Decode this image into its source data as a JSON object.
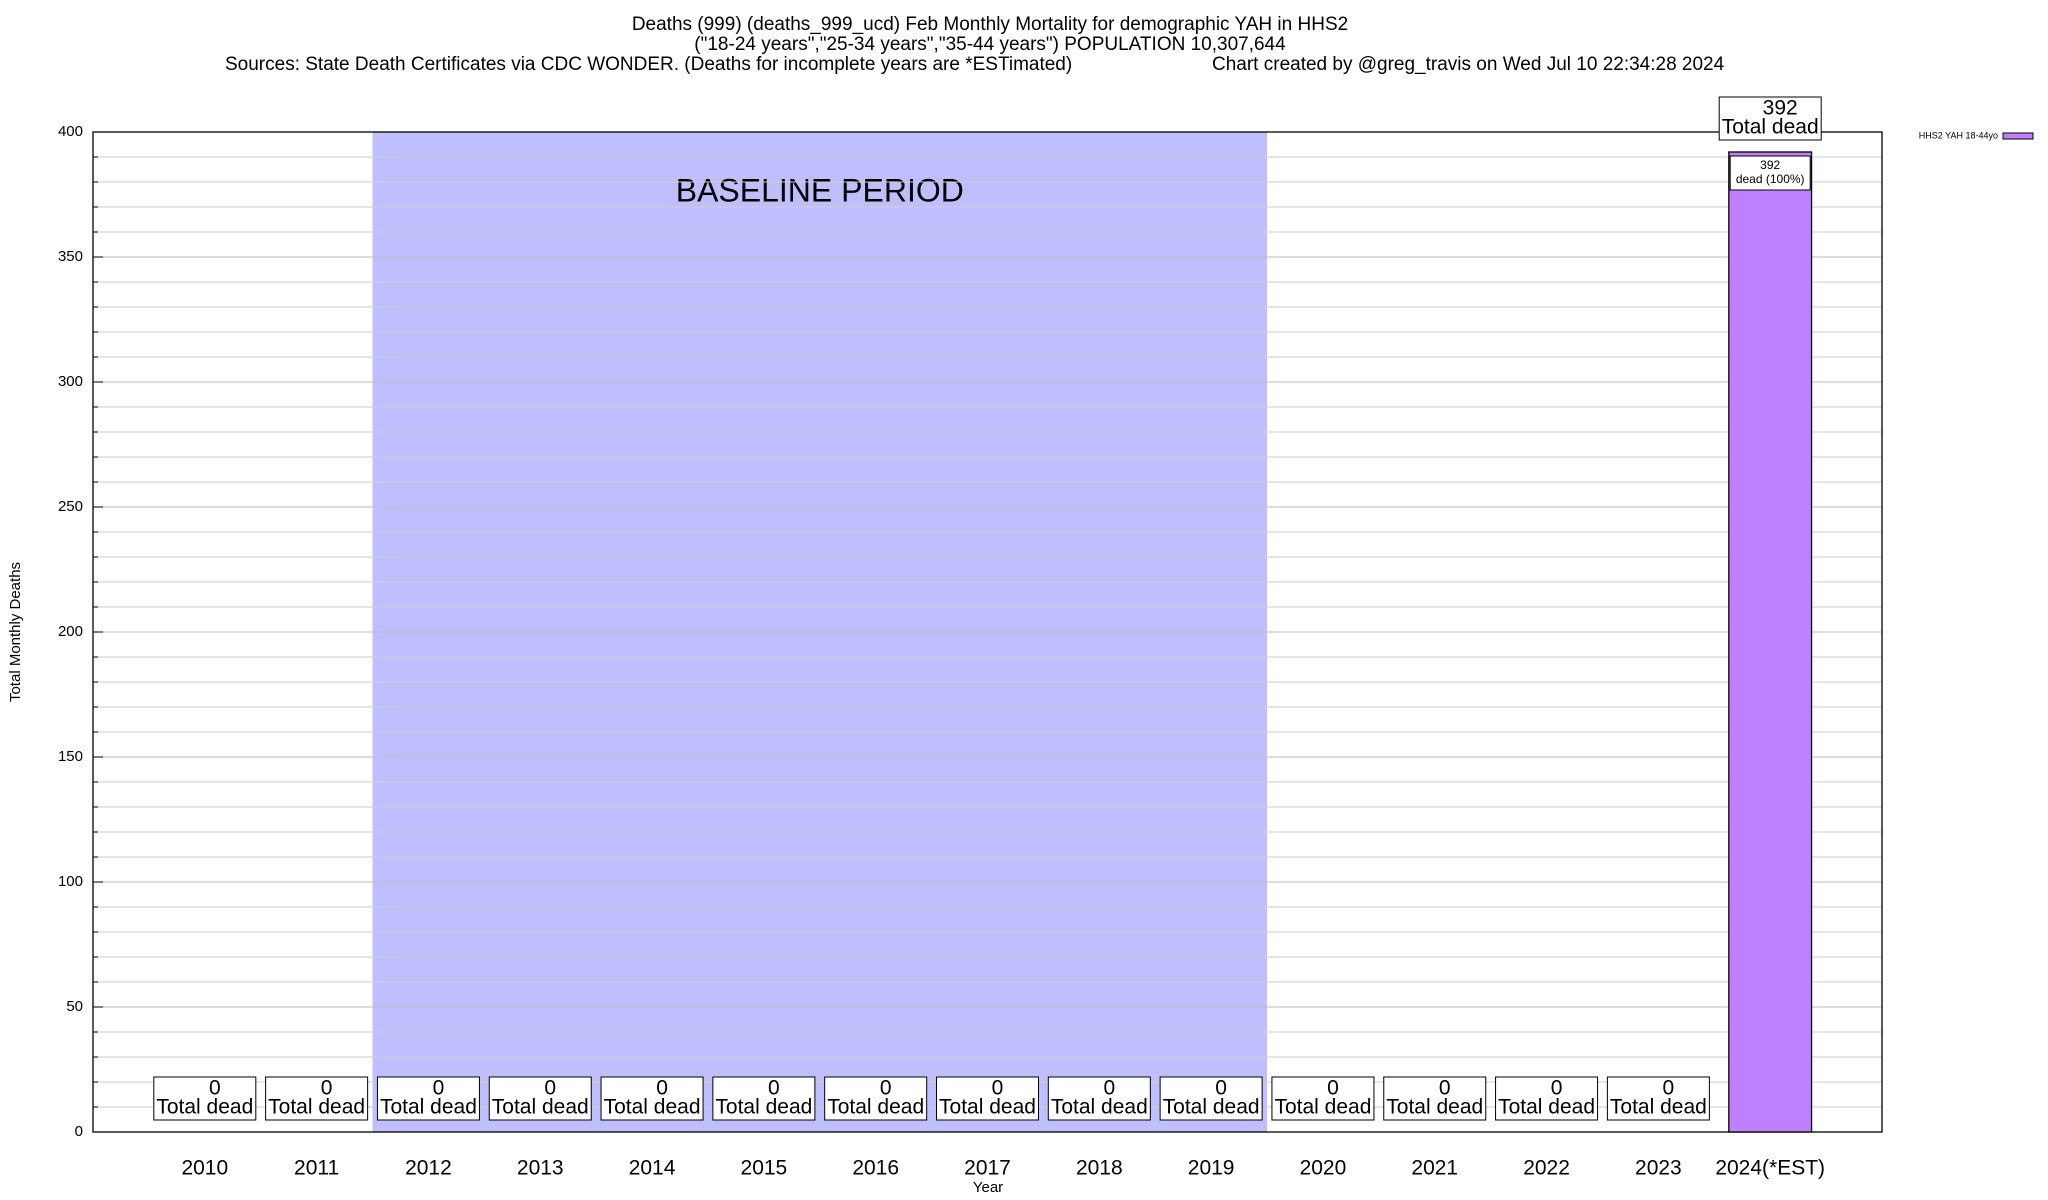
{
  "chart_data": {
    "type": "bar",
    "title": "Deaths (999) (deaths_999_ucd) Feb Monthly Mortality for demographic YAH in HHS2",
    "subtitle": "(\"18-24 years\",\"25-34 years\",\"35-44 years\") POPULATION 10,307,644",
    "source": "Sources: State Death Certificates via CDC WONDER. (Deaths for incomplete years are *ESTimated)",
    "credit": "Chart created by @greg_travis on Wed Jul 10 22:34:28 2024",
    "x_label": "Year",
    "y_label": "Total Monthly Deaths",
    "categories": [
      "2010",
      "2011",
      "2012",
      "2013",
      "2014",
      "2015",
      "2016",
      "2017",
      "2018",
      "2019",
      "2020",
      "2021",
      "2022",
      "2023",
      "2024(*EST)"
    ],
    "series": [
      {
        "name": "HHS2 YAH 18-44yo",
        "color": "#bf80ff",
        "values": [
          0,
          0,
          0,
          0,
          0,
          0,
          0,
          0,
          0,
          0,
          0,
          0,
          0,
          0,
          392
        ]
      }
    ],
    "total_label": "Total dead",
    "share_label": "dead (100%)",
    "baseline": {
      "label": "BASELINE PERIOD",
      "start": "2012",
      "end": "2019",
      "color": "#bfbfff"
    },
    "ylim": [
      0,
      400
    ],
    "yticks": [
      0,
      50,
      100,
      150,
      200,
      250,
      300,
      350,
      400
    ],
    "grid": true,
    "legend": "top-right"
  }
}
